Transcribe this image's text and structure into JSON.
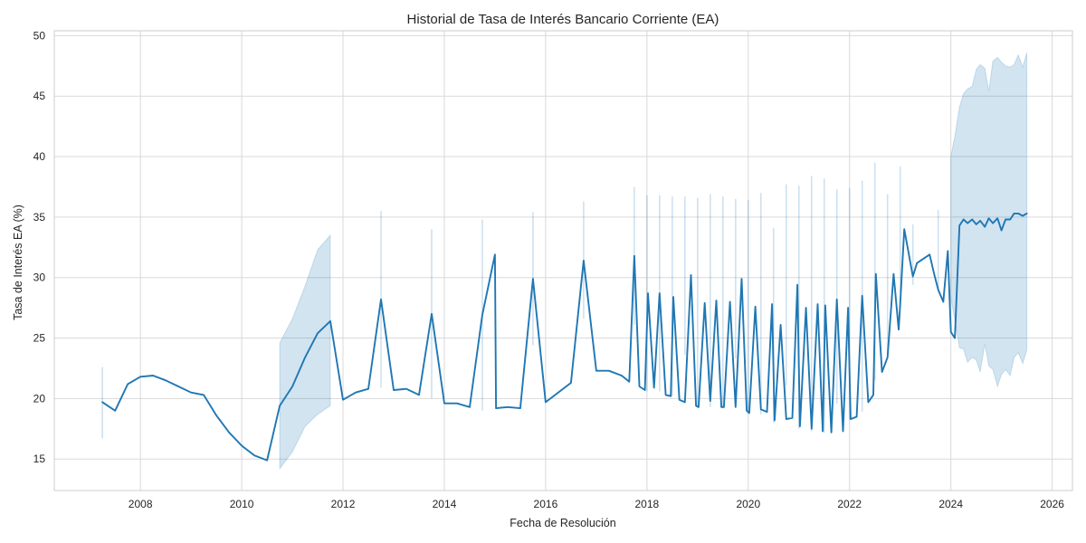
{
  "chart_data": {
    "type": "line",
    "title": "Historial de Tasa de Interés Bancario Corriente (EA)",
    "xlabel": "Fecha de Resolución",
    "ylabel": "Tasa de Interés EA (%)",
    "xlim": [
      2006.3,
      2026.4
    ],
    "ylim": [
      12.4,
      50.4
    ],
    "x_ticks": [
      2008,
      2010,
      2012,
      2014,
      2016,
      2018,
      2020,
      2022,
      2024,
      2026
    ],
    "y_ticks": [
      15,
      20,
      25,
      30,
      35,
      40,
      45,
      50
    ],
    "grid": true,
    "colors": {
      "line": "#1f77b4",
      "band": "#1f77b4",
      "grid": "#d9d9d9",
      "axes": "#cccccc"
    },
    "series": [
      {
        "x": [
          2007.25,
          2007.5,
          2007.75,
          2008.0,
          2008.25,
          2008.5,
          2008.75,
          2009.0,
          2009.25,
          2009.5,
          2009.75,
          2010.0,
          2010.25,
          2010.5,
          2010.75,
          2011.0,
          2011.25,
          2011.5,
          2011.75,
          2012.0,
          2012.25,
          2012.5,
          2012.75,
          2013.0,
          2013.25,
          2013.5,
          2013.75,
          2014.0,
          2014.25,
          2014.5,
          2014.75,
          2015.0,
          2015.02,
          2015.25,
          2015.5,
          2015.75,
          2016.0,
          2016.5,
          2016.75,
          2017.0,
          2017.25,
          2017.5,
          2017.65,
          2017.75,
          2017.85,
          2017.96,
          2018.02,
          2018.14,
          2018.25,
          2018.37,
          2018.47,
          2018.52,
          2018.64,
          2018.75,
          2018.87,
          2018.97,
          2019.02,
          2019.14,
          2019.25,
          2019.37,
          2019.47,
          2019.52,
          2019.64,
          2019.75,
          2019.87,
          2019.97,
          2020.02,
          2020.14,
          2020.25,
          2020.37,
          2020.47,
          2020.52,
          2020.64,
          2020.75,
          2020.87,
          2020.97,
          2021.02,
          2021.14,
          2021.25,
          2021.37,
          2021.47,
          2021.52,
          2021.64,
          2021.75,
          2021.87,
          2021.97,
          2022.02,
          2022.14,
          2022.25,
          2022.37,
          2022.47,
          2022.52,
          2022.64,
          2022.75,
          2022.87,
          2022.97,
          2023.0,
          2023.08,
          2023.25,
          2023.33,
          2023.58,
          2023.67,
          2023.75,
          2023.85,
          2023.94,
          2024.0,
          2024.08,
          2024.17,
          2024.25,
          2024.33,
          2024.42,
          2024.5,
          2024.58,
          2024.67,
          2024.75,
          2024.83,
          2024.92,
          2025.0,
          2025.08,
          2025.17,
          2025.25,
          2025.33,
          2025.42,
          2025.5
        ],
        "y": [
          19.7,
          19.0,
          21.2,
          21.8,
          21.9,
          21.5,
          21.0,
          20.5,
          20.3,
          18.6,
          17.2,
          16.1,
          15.3,
          14.9,
          19.4,
          21.0,
          23.4,
          25.4,
          26.4,
          19.9,
          20.5,
          20.8,
          28.2,
          20.7,
          20.8,
          20.3,
          27.0,
          19.6,
          19.6,
          19.3,
          26.9,
          31.9,
          19.2,
          19.3,
          19.2,
          29.9,
          19.7,
          21.3,
          31.4,
          22.3,
          22.3,
          21.9,
          21.4,
          31.8,
          21.0,
          20.7,
          28.7,
          20.9,
          28.7,
          20.3,
          20.2,
          28.4,
          19.9,
          19.7,
          30.2,
          19.4,
          19.3,
          27.9,
          19.8,
          28.1,
          19.3,
          19.3,
          28.0,
          19.3,
          29.9,
          19.0,
          18.8,
          27.6,
          19.1,
          18.9,
          27.8,
          18.2,
          26.1,
          18.3,
          18.4,
          29.4,
          17.7,
          27.5,
          17.5,
          27.8,
          17.3,
          27.7,
          17.2,
          28.2,
          17.3,
          27.5,
          18.3,
          18.5,
          28.5,
          19.7,
          20.3,
          30.3,
          22.2,
          23.4,
          30.3,
          25.7,
          27.8,
          34.0,
          30.1,
          31.2,
          31.9,
          30.3,
          29.0,
          28.0,
          32.2,
          25.5,
          25.0,
          34.3,
          34.8,
          34.5,
          34.8,
          34.4,
          34.7,
          34.2,
          34.9,
          34.5,
          34.9,
          33.9,
          34.8,
          34.8,
          35.3,
          35.3,
          35.1,
          35.3
        ]
      }
    ],
    "bands": [
      {
        "x": [
          2010.75,
          2011.0,
          2011.25,
          2011.5,
          2011.75
        ],
        "lower": [
          14.2,
          15.6,
          17.7,
          18.7,
          19.4
        ],
        "upper": [
          24.6,
          26.6,
          29.3,
          32.3,
          33.5
        ]
      },
      {
        "x": [
          2024.0,
          2024.08,
          2024.17,
          2024.25,
          2024.33,
          2024.42,
          2024.5,
          2024.58,
          2024.67,
          2024.75,
          2024.83,
          2024.92,
          2025.0,
          2025.08,
          2025.17,
          2025.25,
          2025.33,
          2025.42,
          2025.5
        ],
        "lower": [
          28.3,
          26.5,
          24.2,
          24.1,
          23.0,
          23.4,
          23.2,
          22.2,
          24.5,
          22.7,
          22.4,
          21.0,
          22.0,
          22.4,
          21.9,
          23.4,
          23.8,
          22.9,
          24.0
        ],
        "upper": [
          40.0,
          41.7,
          44.1,
          45.2,
          45.6,
          45.8,
          47.2,
          47.6,
          47.3,
          45.4,
          47.9,
          48.2,
          47.8,
          47.5,
          47.4,
          47.6,
          48.4,
          47.4,
          48.6
        ]
      }
    ],
    "spikes": [
      {
        "x": 2007.25,
        "lower": 16.7,
        "upper": 22.6
      },
      {
        "x": 2012.75,
        "lower": 20.9,
        "upper": 35.5
      },
      {
        "x": 2013.75,
        "lower": 20.0,
        "upper": 34.0
      },
      {
        "x": 2014.75,
        "lower": 19.0,
        "upper": 34.8
      },
      {
        "x": 2015.75,
        "lower": 24.4,
        "upper": 35.4
      },
      {
        "x": 2016.75,
        "lower": 26.6,
        "upper": 36.3
      },
      {
        "x": 2017.75,
        "lower": 26.1,
        "upper": 37.5
      },
      {
        "x": 2018.0,
        "lower": 20.6,
        "upper": 36.8
      },
      {
        "x": 2018.25,
        "lower": 20.6,
        "upper": 36.8
      },
      {
        "x": 2018.5,
        "lower": 20.2,
        "upper": 36.7
      },
      {
        "x": 2018.75,
        "lower": 23.6,
        "upper": 36.7
      },
      {
        "x": 2019.0,
        "lower": 19.2,
        "upper": 36.6
      },
      {
        "x": 2019.25,
        "lower": 19.3,
        "upper": 36.9
      },
      {
        "x": 2019.5,
        "lower": 19.2,
        "upper": 36.7
      },
      {
        "x": 2019.75,
        "lower": 23.3,
        "upper": 36.5
      },
      {
        "x": 2020.0,
        "lower": 18.8,
        "upper": 36.4
      },
      {
        "x": 2020.25,
        "lower": 18.7,
        "upper": 37.0
      },
      {
        "x": 2020.5,
        "lower": 18.0,
        "upper": 34.1
      },
      {
        "x": 2020.75,
        "lower": 21.1,
        "upper": 37.7
      },
      {
        "x": 2021.0,
        "lower": 17.5,
        "upper": 37.6
      },
      {
        "x": 2021.25,
        "lower": 17.3,
        "upper": 38.4
      },
      {
        "x": 2021.5,
        "lower": 17.2,
        "upper": 38.2
      },
      {
        "x": 2021.75,
        "lower": 19.6,
        "upper": 37.3
      },
      {
        "x": 2022.0,
        "lower": 18.3,
        "upper": 37.4
      },
      {
        "x": 2022.25,
        "lower": 18.9,
        "upper": 38.0
      },
      {
        "x": 2022.5,
        "lower": 21.5,
        "upper": 39.5
      },
      {
        "x": 2022.75,
        "lower": 23.7,
        "upper": 36.9
      },
      {
        "x": 2023.0,
        "lower": 28.8,
        "upper": 39.2
      },
      {
        "x": 2023.25,
        "lower": 29.4,
        "upper": 34.4
      },
      {
        "x": 2023.75,
        "lower": 28.9,
        "upper": 35.6
      }
    ]
  }
}
